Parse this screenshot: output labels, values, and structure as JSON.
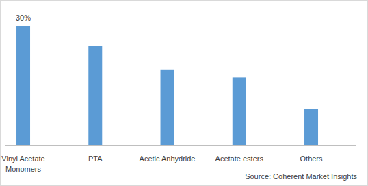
{
  "chart_data": {
    "type": "bar",
    "categories": [
      "Vinyl Acetate Monomers",
      "PTA",
      "Acetic Anhydride",
      "Acetate esters",
      "Others"
    ],
    "values": [
      30,
      25,
      19,
      17,
      9
    ],
    "value_labels": [
      "30%",
      null,
      null,
      null,
      null
    ],
    "data_labels": true,
    "color": "#5b9bd5",
    "ylim": [
      0,
      30
    ],
    "tick_labels": "x",
    "grid": false,
    "source": "Source: Coherent Market Insights"
  }
}
